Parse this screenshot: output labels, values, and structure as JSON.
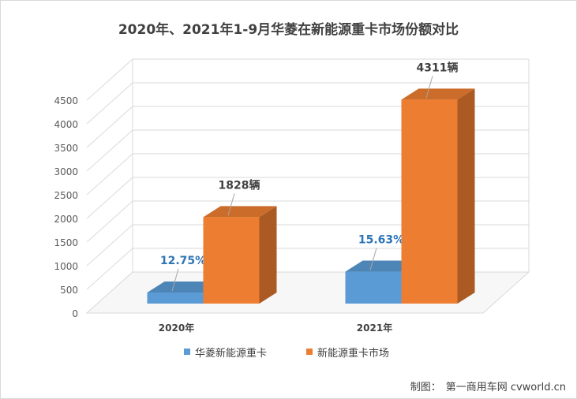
{
  "chart_data": {
    "type": "bar",
    "title": "2020年、2021年1-9月华菱在新能源重卡市场份额对比",
    "categories": [
      "2020年",
      "2021年"
    ],
    "series": [
      {
        "name": "华菱新能源重卡",
        "color": "#5b9bd5",
        "values": [
          233,
          674
        ],
        "data_labels": [
          "12.75%",
          "15.63%"
        ],
        "label_color": "#2e75b6"
      },
      {
        "name": "新能源重卡市场",
        "color": "#ed7d31",
        "values": [
          1828,
          4311
        ],
        "data_labels": [
          "1828辆",
          "4311辆"
        ],
        "label_color": "#404040"
      }
    ],
    "ylim": [
      0,
      4500
    ],
    "yticks": [
      0,
      500,
      1000,
      1500,
      2000,
      2500,
      3000,
      3500,
      4000,
      4500
    ],
    "grid": true,
    "legend_position": "bottom"
  },
  "credit": {
    "label": "制图：",
    "source": "第一商用车网 cvworld.cn"
  }
}
